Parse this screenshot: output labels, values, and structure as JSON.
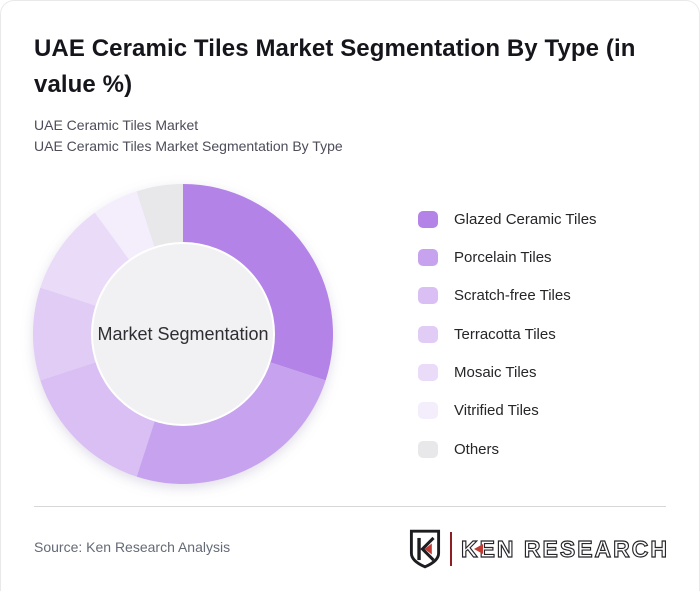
{
  "page": {
    "title": "UAE Ceramic Tiles Market Segmentation By Type (in value %)",
    "subtitle1": "UAE Ceramic Tiles Market",
    "subtitle2": "UAE Ceramic Tiles Market Segmentation By Type",
    "source": "Source: Ken Research Analysis"
  },
  "chart_data": {
    "type": "pie",
    "subtype": "donut",
    "title": "UAE Ceramic Tiles Market Segmentation By Type (in value %)",
    "unit": "value %",
    "center_label": "Market Segmentation",
    "legend_position": "right",
    "start_angle_deg": 0,
    "direction": "clockwise",
    "categories": [
      "Glazed Ceramic Tiles",
      "Porcelain Tiles",
      "Scratch-free Tiles",
      "Terracotta Tiles",
      "Mosaic Tiles",
      "Vitrified Tiles",
      "Others"
    ],
    "values": [
      30,
      25,
      15,
      10,
      10,
      5,
      5
    ],
    "colors": [
      "#b383e7",
      "#c7a2ef",
      "#d9bff3",
      "#e1ccf6",
      "#eadbf9",
      "#f4edfc",
      "#e8e7e9"
    ],
    "center_circle_color": "#f1f0f2"
  },
  "logo": {
    "badge_letter": "K",
    "wordmark_k": "K",
    "wordmark_rest": "EN RESEARCH",
    "accent_color": "#c13a33",
    "outline_color": "#26262b"
  }
}
